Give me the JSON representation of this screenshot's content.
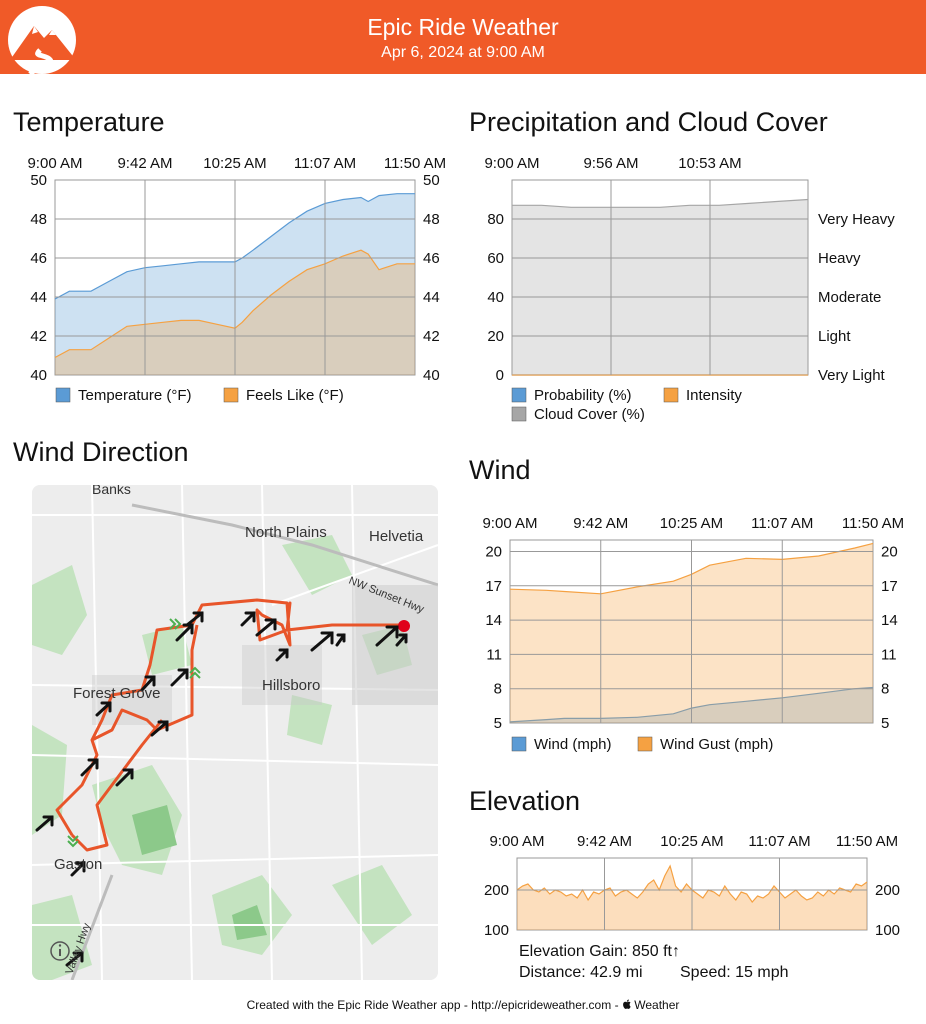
{
  "header": {
    "app_title": "Epic Ride Weather",
    "subtitle": "Apr 6, 2024 at 9:00 AM",
    "bg_color": "#f05a28"
  },
  "sections": {
    "temperature": "Temperature",
    "precip": "Precipitation and Cloud Cover",
    "wind_direction": "Wind Direction",
    "wind": "Wind",
    "elevation": "Elevation"
  },
  "map": {
    "labels": {
      "banks": "Banks",
      "north_plains": "North Plains",
      "helvetia": "Helvetia",
      "sunset_hwy": "NW Sunset Hwy",
      "forest_grove": "Forest Grove",
      "hillsboro": "Hillsboro",
      "gaston": "Gaston",
      "valley_hwy": "Valley Hwy"
    },
    "info_icon": "info-icon",
    "route_color": "#e8552a",
    "end_marker_color": "#e0001b"
  },
  "stats": {
    "elevation_gain": "Elevation Gain: 850 ft↑",
    "distance": "Distance: 42.9 mi",
    "speed": "Speed: 15 mph"
  },
  "footer": {
    "text": "Created with the Epic Ride Weather app - http://epicrideweather.com - ",
    "weather_brand": "Weather",
    "apple_icon": "apple-icon"
  },
  "chart_data": [
    {
      "id": "temperature",
      "type": "area",
      "x_ticks": [
        "9:00 AM",
        "9:42 AM",
        "10:25 AM",
        "11:07 AM",
        "11:50 AM"
      ],
      "ylim": [
        40,
        50
      ],
      "y_ticks": [
        40,
        42,
        44,
        46,
        48,
        50
      ],
      "grid": true,
      "legend_position": "bottom",
      "x": [
        0,
        0.04,
        0.1,
        0.15,
        0.2,
        0.25,
        0.3,
        0.35,
        0.4,
        0.45,
        0.5,
        0.52,
        0.55,
        0.6,
        0.65,
        0.7,
        0.75,
        0.8,
        0.85,
        0.87,
        0.9,
        0.95,
        1
      ],
      "series": [
        {
          "name": "Temperature (°F)",
          "color": "#5b9bd5",
          "values": [
            43.9,
            44.3,
            44.3,
            44.8,
            45.3,
            45.5,
            45.6,
            45.7,
            45.8,
            45.8,
            45.8,
            46.0,
            46.4,
            47.1,
            47.8,
            48.4,
            48.8,
            49.0,
            49.1,
            48.9,
            49.2,
            49.3,
            49.3
          ]
        },
        {
          "name": "Feels Like (°F)",
          "color": "#f5a142",
          "values": [
            40.9,
            41.3,
            41.3,
            41.9,
            42.5,
            42.6,
            42.7,
            42.8,
            42.8,
            42.6,
            42.4,
            42.7,
            43.3,
            44.1,
            44.8,
            45.4,
            45.7,
            46.1,
            46.4,
            46.2,
            45.4,
            45.7,
            45.7
          ]
        }
      ]
    },
    {
      "id": "precipitation",
      "type": "area",
      "x_ticks": [
        "9:00 AM",
        "9:56 AM",
        "10:53 AM"
      ],
      "ylim": [
        0,
        100
      ],
      "y_ticks": [
        0,
        20,
        40,
        60,
        80
      ],
      "right_labels": [
        "Very Light",
        "Light",
        "Moderate",
        "Heavy",
        "Very Heavy"
      ],
      "grid": true,
      "legend_position": "bottom",
      "x": [
        0,
        0.1,
        0.2,
        0.3,
        0.4,
        0.5,
        0.6,
        0.7,
        0.8,
        0.9,
        1
      ],
      "series": [
        {
          "name": "Probability (%)",
          "color": "#5b9bd5",
          "values": [
            0,
            0,
            0,
            0,
            0,
            0,
            0,
            0,
            0,
            0,
            0
          ]
        },
        {
          "name": "Intensity",
          "color": "#f5a142",
          "values": [
            0,
            0,
            0,
            0,
            0,
            0,
            0,
            0,
            0,
            0,
            0
          ]
        },
        {
          "name": "Cloud Cover (%)",
          "color": "#a6a6a6",
          "values": [
            87,
            87,
            86,
            86,
            86,
            86,
            87,
            87,
            88,
            89,
            90
          ]
        }
      ]
    },
    {
      "id": "wind",
      "type": "area",
      "x_ticks": [
        "9:00 AM",
        "9:42 AM",
        "10:25 AM",
        "11:07 AM",
        "11:50 AM"
      ],
      "ylim": [
        5,
        21
      ],
      "y_ticks": [
        5,
        8,
        11,
        14,
        17,
        20
      ],
      "grid": true,
      "legend_position": "bottom",
      "x": [
        0,
        0.1,
        0.15,
        0.25,
        0.35,
        0.45,
        0.5,
        0.55,
        0.65,
        0.75,
        0.85,
        0.95,
        1
      ],
      "series": [
        {
          "name": "Wind (mph)",
          "color": "#5b9bd5",
          "values": [
            5.1,
            5.3,
            5.4,
            5.4,
            5.5,
            5.8,
            6.3,
            6.6,
            6.9,
            7.2,
            7.6,
            8.0,
            8.1
          ]
        },
        {
          "name": "Wind Gust (mph)",
          "color": "#f5a142",
          "values": [
            16.7,
            16.6,
            16.5,
            16.3,
            16.9,
            17.4,
            18.0,
            18.8,
            19.4,
            19.3,
            19.6,
            20.3,
            20.7
          ]
        }
      ]
    },
    {
      "id": "elevation",
      "type": "area",
      "x_ticks": [
        "9:00 AM",
        "9:42 AM",
        "10:25 AM",
        "11:07 AM",
        "11:50 AM"
      ],
      "ylim": [
        100,
        280
      ],
      "y_ticks": [
        100,
        200
      ],
      "grid": true,
      "series": [
        {
          "name": "",
          "color": "#f5a142",
          "values": [
            200,
            210,
            215,
            200,
            195,
            205,
            190,
            200,
            195,
            185,
            190,
            180,
            200,
            175,
            195,
            190,
            200,
            205,
            185,
            195,
            200,
            190,
            180,
            195,
            215,
            225,
            200,
            235,
            260,
            210,
            195,
            215,
            200,
            190,
            180,
            200,
            195,
            185,
            210,
            190,
            175,
            195,
            190,
            170,
            185,
            180,
            190,
            210,
            195,
            180,
            190,
            200,
            185,
            175,
            180,
            195,
            185,
            200,
            190,
            205,
            200,
            195,
            215,
            210,
            220
          ]
        }
      ]
    }
  ]
}
